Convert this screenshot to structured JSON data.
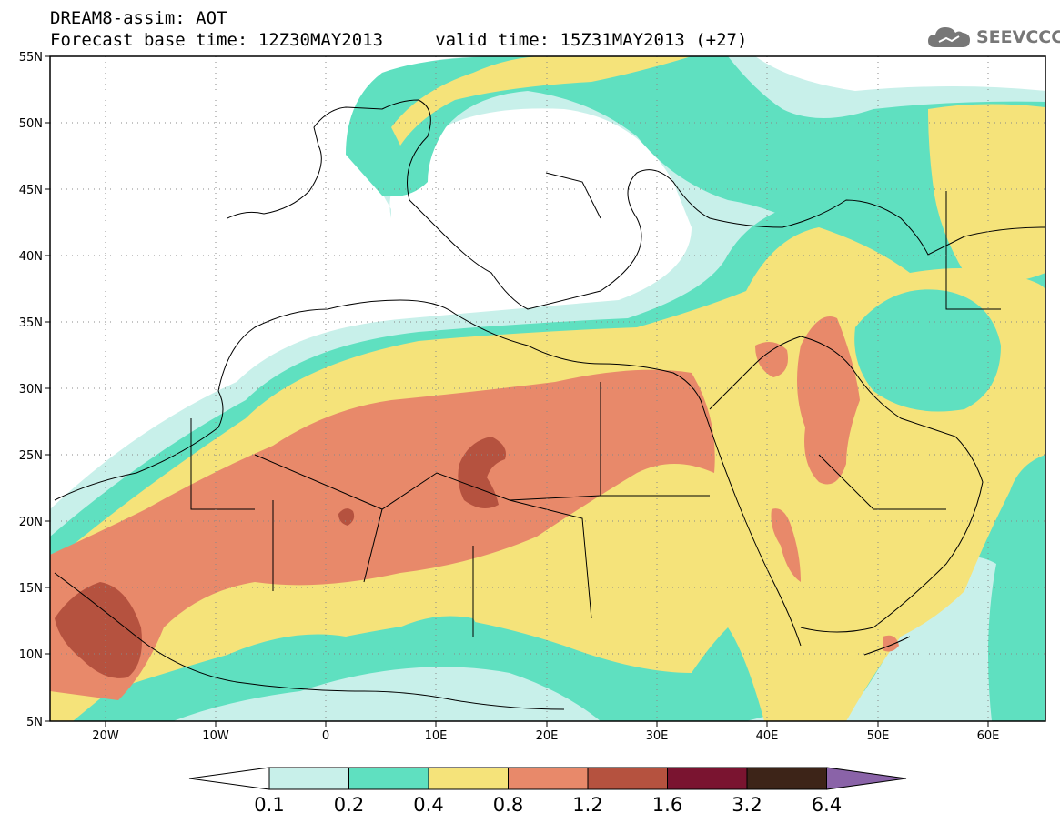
{
  "header": {
    "line1": "DREAM8-assim: AOT",
    "line2": "Forecast base time: 12Z30MAY2013     valid time: 15Z31MAY2013 (+27)"
  },
  "logo": {
    "text": "SEEVCCC",
    "icon": "cloud-icon"
  },
  "map": {
    "lat_labels": [
      "55N",
      "50N",
      "45N",
      "40N",
      "35N",
      "30N",
      "25N",
      "20N",
      "15N",
      "10N",
      "5N"
    ],
    "lon_labels": [
      "20W",
      "10W",
      "0",
      "10E",
      "20E",
      "30E",
      "40E",
      "50E",
      "60E"
    ],
    "lon_range": [
      -25,
      65
    ],
    "lat_range": [
      5,
      55
    ]
  },
  "colorbar": {
    "labels": [
      "0.1",
      "0.2",
      "0.4",
      "0.8",
      "1.2",
      "1.6",
      "3.2",
      "6.4"
    ],
    "colors": [
      "#ffffff",
      "#c8f0ea",
      "#5fe0c0",
      "#f5e37a",
      "#e8896a",
      "#b5523f",
      "#7a1430",
      "#3d2418",
      "#8a63a8"
    ]
  }
}
